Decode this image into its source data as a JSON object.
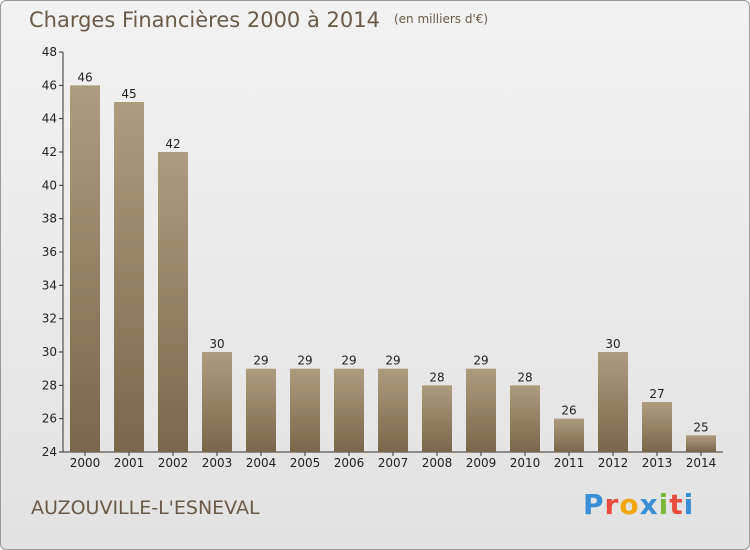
{
  "header": {
    "title": "Charges Financières 2000 à 2014",
    "unit_note": "(en milliers d'€)"
  },
  "footer": {
    "commune": "AUZOUVILLE-L'ESNEVAL",
    "brand": "Proxiti"
  },
  "colors": {
    "bar_light": "#ad9c7d",
    "bar_dark": "#7a6749",
    "text": "#6b5a47",
    "brand": [
      "#3b8fd6",
      "#e84c3d",
      "#f2a600",
      "#3b8fd6",
      "#7cb93a",
      "#e84c3d",
      "#3b8fd6"
    ]
  },
  "chart_data": {
    "type": "bar",
    "title": "Charges Financières 2000 à 2014",
    "subtitle": "(en milliers d'€)",
    "categories": [
      "2000",
      "2001",
      "2002",
      "2003",
      "2004",
      "2005",
      "2006",
      "2007",
      "2008",
      "2009",
      "2010",
      "2011",
      "2012",
      "2013",
      "2014"
    ],
    "values": [
      46,
      45,
      42,
      30,
      29,
      29,
      29,
      29,
      28,
      29,
      28,
      26,
      30,
      27,
      25
    ],
    "ylim": [
      24,
      48
    ],
    "yticks": [
      24,
      26,
      28,
      30,
      32,
      34,
      36,
      38,
      40,
      42,
      44,
      46,
      48
    ],
    "grid": false,
    "data_labels": true
  }
}
